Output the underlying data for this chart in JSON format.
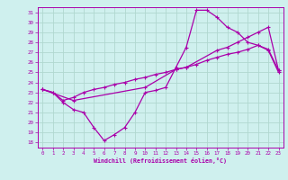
{
  "xlabel": "Windchill (Refroidissement éolien,°C)",
  "background_color": "#cff0ee",
  "grid_color": "#b0d8d0",
  "line_color": "#aa00aa",
  "xlim": [
    -0.5,
    23.5
  ],
  "ylim": [
    17.5,
    31.5
  ],
  "xticks": [
    0,
    1,
    2,
    3,
    4,
    5,
    6,
    7,
    8,
    9,
    10,
    11,
    12,
    13,
    14,
    15,
    16,
    17,
    18,
    19,
    20,
    21,
    22,
    23
  ],
  "yticks": [
    18,
    19,
    20,
    21,
    22,
    23,
    24,
    25,
    26,
    27,
    28,
    29,
    30,
    31
  ],
  "curve1_x": [
    0,
    1,
    2,
    3,
    4,
    5,
    6,
    7,
    8,
    9,
    10,
    11,
    12,
    13,
    14,
    15,
    16,
    17,
    18,
    19,
    20,
    21,
    22,
    23
  ],
  "curve1_y": [
    23.3,
    23.0,
    22.0,
    21.3,
    21.0,
    19.5,
    18.2,
    18.8,
    19.5,
    21.0,
    23.0,
    23.2,
    23.5,
    25.5,
    27.5,
    31.2,
    31.2,
    30.5,
    29.5,
    29.0,
    28.0,
    27.7,
    27.2,
    25.0
  ],
  "curve2_x": [
    0,
    3,
    10,
    13,
    14,
    17,
    18,
    19,
    20,
    21,
    22,
    23
  ],
  "curve2_y": [
    23.3,
    22.2,
    23.5,
    25.3,
    25.5,
    27.2,
    27.5,
    28.0,
    28.5,
    29.0,
    29.5,
    25.2
  ],
  "curve3_x": [
    0,
    1,
    2,
    3,
    4,
    5,
    6,
    7,
    8,
    9,
    10,
    11,
    12,
    13,
    14,
    15,
    16,
    17,
    18,
    19,
    20,
    21,
    22,
    23
  ],
  "curve3_y": [
    23.3,
    23.0,
    22.2,
    22.5,
    23.0,
    23.3,
    23.5,
    23.8,
    24.0,
    24.3,
    24.5,
    24.8,
    25.0,
    25.3,
    25.5,
    25.8,
    26.2,
    26.5,
    26.8,
    27.0,
    27.3,
    27.7,
    27.3,
    25.2
  ]
}
